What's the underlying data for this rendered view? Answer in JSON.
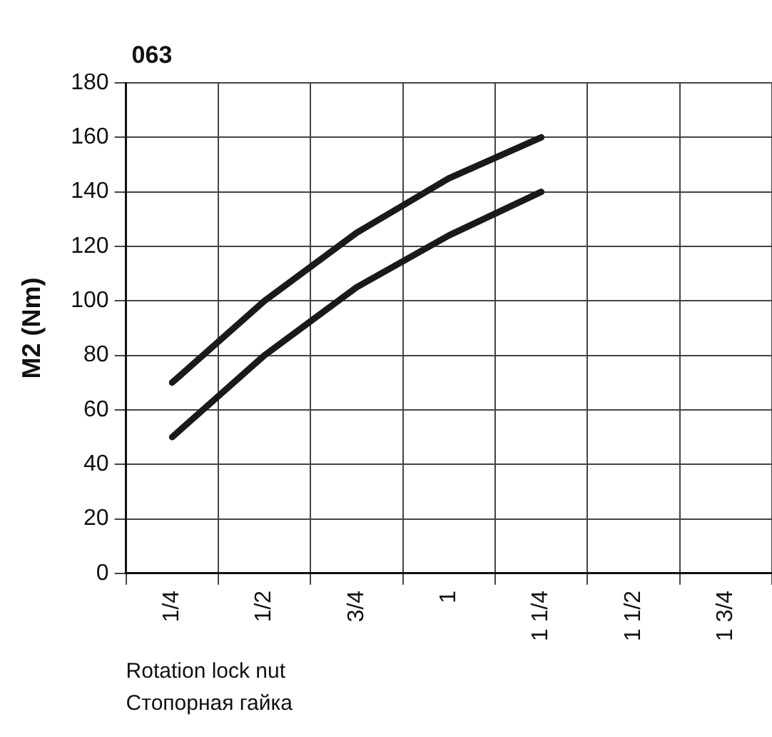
{
  "chart_data": {
    "type": "line",
    "title": "063",
    "ylabel": "M2 (Nm)",
    "xlabel": "Rotation lock nut\nСтопорная гайка",
    "categories": [
      "1/4",
      "1/2",
      "3/4",
      "1",
      "1 1/4",
      "1 1/2",
      "1 3/4"
    ],
    "series": [
      {
        "color": "#1a1a1a",
        "values": [
          70,
          100,
          125,
          145,
          160,
          null,
          null
        ]
      },
      {
        "color": "#1a1a1a",
        "values": [
          50,
          80,
          105,
          124,
          140,
          null,
          null
        ]
      }
    ],
    "ylim": [
      0,
      180
    ],
    "yticks": [
      0,
      20,
      40,
      60,
      80,
      100,
      120,
      140,
      160,
      180
    ],
    "grid": true,
    "legend": false,
    "marker": "none",
    "line_style": "solid"
  }
}
